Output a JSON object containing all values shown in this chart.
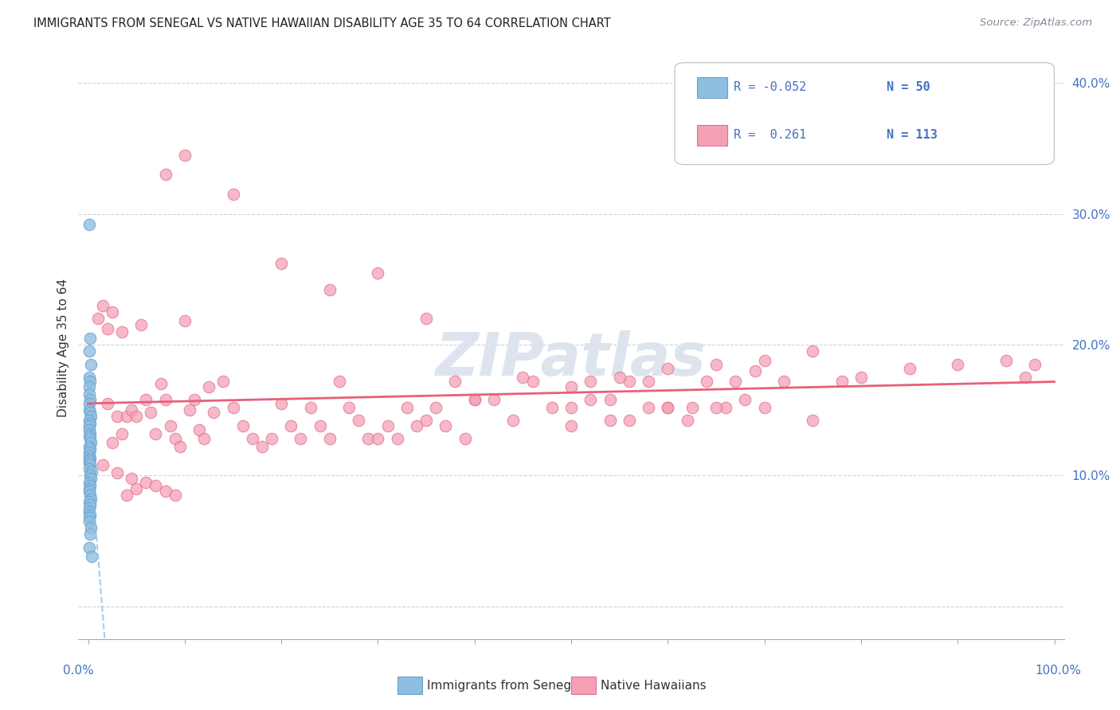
{
  "title": "IMMIGRANTS FROM SENEGAL VS NATIVE HAWAIIAN DISABILITY AGE 35 TO 64 CORRELATION CHART",
  "source": "Source: ZipAtlas.com",
  "ylabel": "Disability Age 35 to 64",
  "series1_color": "#8fbfe0",
  "series2_color": "#f5a0b5",
  "series1_edge": "#6aa0cc",
  "series2_edge": "#e07090",
  "trendline1_color": "#90c0e0",
  "trendline2_color": "#e8607a",
  "watermark_color": "#dde4ee",
  "title_color": "#222222",
  "source_color": "#888899",
  "axis_label_color": "#4472c4",
  "legend_text_color": "#4472c4",
  "legend_R1": "-0.052",
  "legend_N1": "50",
  "legend_R2": "0.261",
  "legend_N2": "113",
  "xlim": [
    0.0,
    1.0
  ],
  "ylim": [
    0.0,
    0.4
  ],
  "ytick_positions": [
    0.1,
    0.2,
    0.3,
    0.4
  ],
  "ytick_labels": [
    "10.0%",
    "20.0%",
    "30.0%",
    "40.0%"
  ],
  "senegal_x": [
    0.001,
    0.002,
    0.001,
    0.003,
    0.001,
    0.002,
    0.001,
    0.001,
    0.002,
    0.001,
    0.001,
    0.002,
    0.003,
    0.001,
    0.002,
    0.001,
    0.001,
    0.002,
    0.001,
    0.002,
    0.003,
    0.001,
    0.002,
    0.001,
    0.001,
    0.002,
    0.001,
    0.001,
    0.002,
    0.001,
    0.004,
    0.002,
    0.003,
    0.001,
    0.002,
    0.001,
    0.001,
    0.002,
    0.003,
    0.001,
    0.002,
    0.001,
    0.001,
    0.002,
    0.001,
    0.001,
    0.003,
    0.002,
    0.001,
    0.004
  ],
  "senegal_y": [
    0.292,
    0.205,
    0.195,
    0.185,
    0.175,
    0.172,
    0.168,
    0.162,
    0.158,
    0.155,
    0.15,
    0.148,
    0.145,
    0.142,
    0.14,
    0.138,
    0.135,
    0.132,
    0.13,
    0.128,
    0.125,
    0.122,
    0.12,
    0.118,
    0.115,
    0.113,
    0.112,
    0.11,
    0.108,
    0.105,
    0.103,
    0.1,
    0.098,
    0.095,
    0.092,
    0.09,
    0.088,
    0.085,
    0.082,
    0.08,
    0.078,
    0.075,
    0.072,
    0.07,
    0.068,
    0.065,
    0.06,
    0.055,
    0.045,
    0.038
  ],
  "hawaiian_x": [
    0.01,
    0.015,
    0.02,
    0.025,
    0.03,
    0.035,
    0.04,
    0.045,
    0.05,
    0.055,
    0.06,
    0.065,
    0.07,
    0.075,
    0.08,
    0.085,
    0.09,
    0.095,
    0.1,
    0.105,
    0.11,
    0.115,
    0.12,
    0.125,
    0.13,
    0.14,
    0.15,
    0.16,
    0.17,
    0.18,
    0.19,
    0.2,
    0.21,
    0.22,
    0.23,
    0.24,
    0.25,
    0.26,
    0.27,
    0.28,
    0.29,
    0.3,
    0.31,
    0.32,
    0.33,
    0.34,
    0.35,
    0.36,
    0.37,
    0.38,
    0.39,
    0.4,
    0.42,
    0.44,
    0.46,
    0.48,
    0.5,
    0.52,
    0.54,
    0.56,
    0.58,
    0.6,
    0.62,
    0.64,
    0.66,
    0.68,
    0.7,
    0.72,
    0.75,
    0.78,
    0.5,
    0.52,
    0.54,
    0.56,
    0.58,
    0.6,
    0.625,
    0.65,
    0.67,
    0.69,
    0.08,
    0.1,
    0.15,
    0.2,
    0.25,
    0.3,
    0.35,
    0.05,
    0.06,
    0.07,
    0.08,
    0.09,
    0.4,
    0.45,
    0.5,
    0.55,
    0.6,
    0.65,
    0.7,
    0.75,
    0.8,
    0.85,
    0.9,
    0.95,
    0.97,
    0.98,
    0.03,
    0.04,
    0.02,
    0.015,
    0.025,
    0.035,
    0.045
  ],
  "hawaiian_y": [
    0.22,
    0.23,
    0.155,
    0.225,
    0.145,
    0.21,
    0.145,
    0.15,
    0.145,
    0.215,
    0.158,
    0.148,
    0.132,
    0.17,
    0.158,
    0.138,
    0.128,
    0.122,
    0.218,
    0.15,
    0.158,
    0.135,
    0.128,
    0.168,
    0.148,
    0.172,
    0.152,
    0.138,
    0.128,
    0.122,
    0.128,
    0.155,
    0.138,
    0.128,
    0.152,
    0.138,
    0.128,
    0.172,
    0.152,
    0.142,
    0.128,
    0.128,
    0.138,
    0.128,
    0.152,
    0.138,
    0.142,
    0.152,
    0.138,
    0.172,
    0.128,
    0.158,
    0.158,
    0.142,
    0.172,
    0.152,
    0.138,
    0.158,
    0.158,
    0.142,
    0.172,
    0.152,
    0.142,
    0.172,
    0.152,
    0.158,
    0.152,
    0.172,
    0.142,
    0.172,
    0.152,
    0.172,
    0.142,
    0.172,
    0.152,
    0.152,
    0.152,
    0.152,
    0.172,
    0.18,
    0.33,
    0.345,
    0.315,
    0.262,
    0.242,
    0.255,
    0.22,
    0.09,
    0.095,
    0.092,
    0.088,
    0.085,
    0.158,
    0.175,
    0.168,
    0.175,
    0.182,
    0.185,
    0.188,
    0.195,
    0.175,
    0.182,
    0.185,
    0.188,
    0.175,
    0.185,
    0.102,
    0.085,
    0.212,
    0.108,
    0.125,
    0.132,
    0.098
  ]
}
